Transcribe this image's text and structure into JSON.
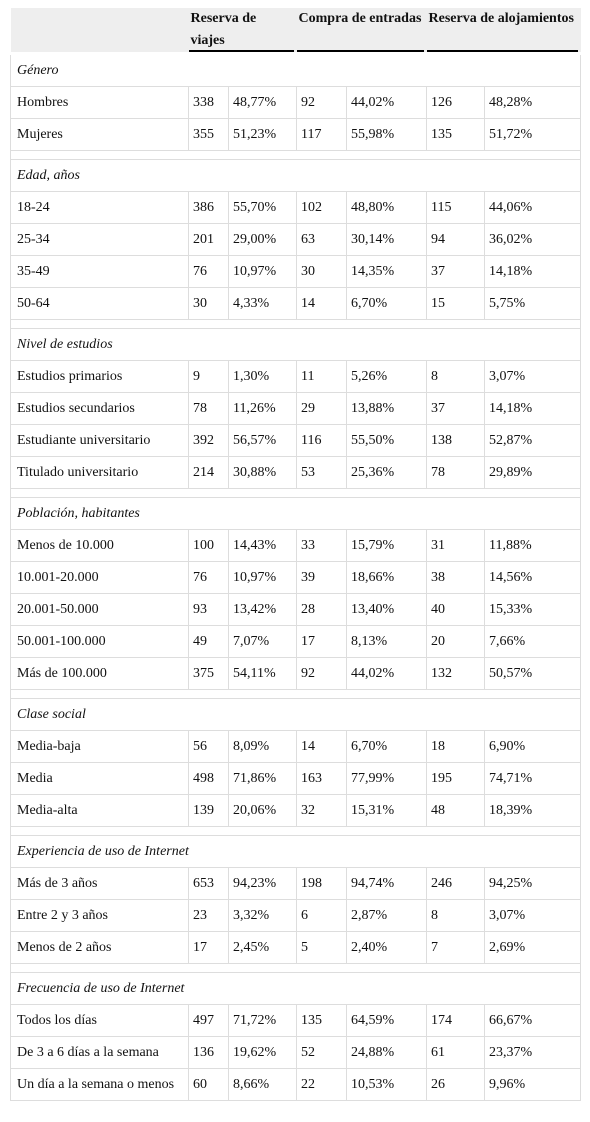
{
  "header": {
    "columns": [
      "Reserva de viajes",
      "Compra de entradas",
      "Reserva de alojamientos"
    ]
  },
  "sections": [
    {
      "title": "Género",
      "rows": [
        {
          "label": "Hombres",
          "values": [
            "338",
            "48,77%",
            "92",
            "44,02%",
            "126",
            "48,28%"
          ]
        },
        {
          "label": "Mujeres",
          "values": [
            "355",
            "51,23%",
            "117",
            "55,98%",
            "135",
            "51,72%"
          ]
        }
      ]
    },
    {
      "title": "Edad, años",
      "rows": [
        {
          "label": "18-24",
          "values": [
            "386",
            "55,70%",
            "102",
            "48,80%",
            "115",
            "44,06%"
          ]
        },
        {
          "label": "25-34",
          "values": [
            "201",
            "29,00%",
            "63",
            "30,14%",
            "94",
            "36,02%"
          ]
        },
        {
          "label": "35-49",
          "values": [
            "76",
            "10,97%",
            "30",
            "14,35%",
            "37",
            "14,18%"
          ]
        },
        {
          "label": "50-64",
          "values": [
            "30",
            "4,33%",
            "14",
            "6,70%",
            "15",
            "5,75%"
          ]
        }
      ]
    },
    {
      "title": "Nivel de estudios",
      "rows": [
        {
          "label": "Estudios primarios",
          "values": [
            "9",
            "1,30%",
            "11",
            "5,26%",
            "8",
            "3,07%"
          ]
        },
        {
          "label": "Estudios secundarios",
          "values": [
            "78",
            "11,26%",
            "29",
            "13,88%",
            "37",
            "14,18%"
          ]
        },
        {
          "label": "Estudiante universitario",
          "values": [
            "392",
            "56,57%",
            "116",
            "55,50%",
            "138",
            "52,87%"
          ]
        },
        {
          "label": "Titulado universitario",
          "values": [
            "214",
            "30,88%",
            "53",
            "25,36%",
            "78",
            "29,89%"
          ]
        }
      ]
    },
    {
      "title": "Población, habitantes",
      "rows": [
        {
          "label": "Menos de 10.000",
          "values": [
            "100",
            "14,43%",
            "33",
            "15,79%",
            "31",
            "11,88%"
          ]
        },
        {
          "label": "10.001-20.000",
          "values": [
            "76",
            "10,97%",
            "39",
            "18,66%",
            "38",
            "14,56%"
          ]
        },
        {
          "label": "20.001-50.000",
          "values": [
            "93",
            "13,42%",
            "28",
            "13,40%",
            "40",
            "15,33%"
          ]
        },
        {
          "label": "50.001-100.000",
          "values": [
            "49",
            "7,07%",
            "17",
            "8,13%",
            "20",
            "7,66%"
          ]
        },
        {
          "label": "Más de 100.000",
          "values": [
            "375",
            "54,11%",
            "92",
            "44,02%",
            "132",
            "50,57%"
          ]
        }
      ]
    },
    {
      "title": "Clase social",
      "rows": [
        {
          "label": "Media-baja",
          "values": [
            "56",
            "8,09%",
            "14",
            "6,70%",
            "18",
            "6,90%"
          ]
        },
        {
          "label": "Media",
          "values": [
            "498",
            "71,86%",
            "163",
            "77,99%",
            "195",
            "74,71%"
          ]
        },
        {
          "label": "Media-alta",
          "values": [
            "139",
            "20,06%",
            "32",
            "15,31%",
            "48",
            "18,39%"
          ]
        }
      ]
    },
    {
      "title": "Experiencia de uso de Internet",
      "rows": [
        {
          "label": "Más de 3 años",
          "values": [
            "653",
            "94,23%",
            "198",
            "94,74%",
            "246",
            "94,25%"
          ]
        },
        {
          "label": "Entre 2 y 3 años",
          "values": [
            "23",
            "3,32%",
            "6",
            "2,87%",
            "8",
            "3,07%"
          ]
        },
        {
          "label": "Menos de 2 años",
          "values": [
            "17",
            "2,45%",
            "5",
            "2,40%",
            "7",
            "2,69%"
          ]
        }
      ]
    },
    {
      "title": "Frecuencia de uso de Internet",
      "rows": [
        {
          "label": "Todos los días",
          "values": [
            "497",
            "71,72%",
            "135",
            "64,59%",
            "174",
            "66,67%"
          ]
        },
        {
          "label": "De 3 a 6 días a la semana",
          "values": [
            "136",
            "19,62%",
            "52",
            "24,88%",
            "61",
            "23,37%"
          ]
        },
        {
          "label": "Un día a la semana o menos",
          "values": [
            "60",
            "8,66%",
            "22",
            "10,53%",
            "26",
            "9,96%"
          ]
        }
      ]
    }
  ]
}
